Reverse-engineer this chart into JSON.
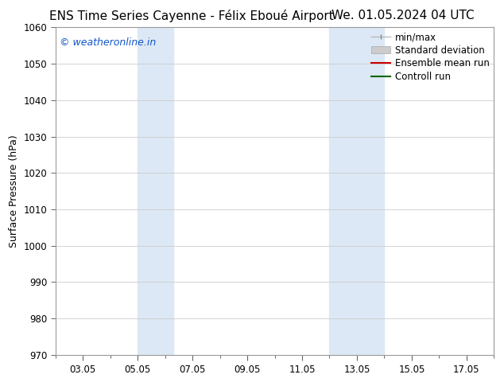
{
  "title_left": "ENS Time Series Cayenne - Félix Eboué Airport",
  "title_right": "We. 01.05.2024 04 UTC",
  "ylabel": "Surface Pressure (hPa)",
  "ylim": [
    970,
    1060
  ],
  "yticks": [
    970,
    980,
    990,
    1000,
    1010,
    1020,
    1030,
    1040,
    1050,
    1060
  ],
  "xtick_labels": [
    "03.05",
    "05.05",
    "07.05",
    "09.05",
    "11.05",
    "13.05",
    "15.05",
    "17.05"
  ],
  "xtick_positions": [
    2,
    4,
    6,
    8,
    10,
    12,
    14,
    16
  ],
  "x_min": 1,
  "x_max": 17,
  "shaded_bands": [
    {
      "x_start": 4,
      "x_end": 5.3,
      "color": "#dce8f5"
    },
    {
      "x_start": 11,
      "x_end": 13,
      "color": "#dce8f5"
    }
  ],
  "watermark": "© weatheronline.in",
  "watermark_color": "#1155cc",
  "background_color": "#ffffff",
  "plot_bg_color": "#ffffff",
  "grid_color": "#cccccc",
  "spine_color": "#999999",
  "title_fontsize": 11,
  "label_fontsize": 9,
  "tick_fontsize": 8.5,
  "legend_fontsize": 8.5,
  "watermark_fontsize": 9
}
